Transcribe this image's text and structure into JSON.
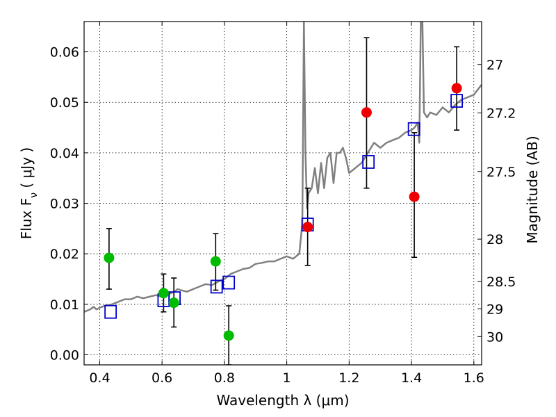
{
  "chart_data": {
    "type": "scatter",
    "xlabel": "Wavelength  λ (μm)",
    "ylabel_left": "Flux  F",
    "ylabel_left_sub": "ν",
    "ylabel_left_unit": "  ( μJy )",
    "ylabel_right": "Magnitude (AB)",
    "xlim": [
      0.35,
      1.625
    ],
    "ylim": [
      -0.002,
      0.066
    ],
    "grid": true,
    "x_ticks": [
      0.4,
      0.6,
      0.8,
      1.0,
      1.2,
      1.4,
      1.6
    ],
    "x_tick_labels": [
      "0.4",
      "0.6",
      "0.8",
      "1",
      "1.2",
      "1.4",
      "1.6"
    ],
    "y_ticks": [
      0.0,
      0.01,
      0.02,
      0.03,
      0.04,
      0.05,
      0.06
    ],
    "y_tick_labels": [
      "0.00",
      "0.01",
      "0.02",
      "0.03",
      "0.04",
      "0.05",
      "0.06"
    ],
    "right_ticks": [
      {
        "label": "27",
        "flux": 0.0575
      },
      {
        "label": "27.2",
        "flux": 0.0479
      },
      {
        "label": "27.5",
        "flux": 0.0363
      },
      {
        "label": "28",
        "flux": 0.0229
      },
      {
        "label": "28.5",
        "flux": 0.0145
      },
      {
        "label": "29",
        "flux": 0.0091
      },
      {
        "label": "30",
        "flux": 0.0036
      }
    ],
    "colors": {
      "model": "#808080",
      "green": "#00bb00",
      "red": "#ee0000",
      "square": "#0000cc",
      "errorbar": "#000000"
    },
    "model_spectrum": {
      "x": [
        0.35,
        0.37,
        0.38,
        0.39,
        0.4,
        0.42,
        0.44,
        0.46,
        0.48,
        0.5,
        0.52,
        0.54,
        0.56,
        0.58,
        0.6,
        0.62,
        0.64,
        0.65,
        0.66,
        0.68,
        0.7,
        0.72,
        0.74,
        0.76,
        0.78,
        0.8,
        0.82,
        0.84,
        0.86,
        0.88,
        0.9,
        0.92,
        0.94,
        0.96,
        0.98,
        1.0,
        1.02,
        1.04,
        1.05,
        1.055,
        1.06,
        1.065,
        1.07,
        1.08,
        1.09,
        1.1,
        1.11,
        1.12,
        1.13,
        1.14,
        1.15,
        1.16,
        1.17,
        1.18,
        1.19,
        1.2,
        1.22,
        1.24,
        1.26,
        1.28,
        1.3,
        1.32,
        1.34,
        1.36,
        1.38,
        1.4,
        1.41,
        1.42,
        1.425,
        1.43,
        1.435,
        1.44,
        1.45,
        1.46,
        1.48,
        1.5,
        1.52,
        1.54,
        1.56,
        1.58,
        1.6,
        1.625
      ],
      "y": [
        0.0085,
        0.009,
        0.0095,
        0.009,
        0.0093,
        0.0098,
        0.01,
        0.0105,
        0.011,
        0.011,
        0.0115,
        0.0112,
        0.0115,
        0.0118,
        0.0115,
        0.012,
        0.0125,
        0.013,
        0.0128,
        0.0125,
        0.013,
        0.0135,
        0.014,
        0.0138,
        0.0145,
        0.015,
        0.016,
        0.0165,
        0.017,
        0.0172,
        0.018,
        0.0182,
        0.0185,
        0.0185,
        0.019,
        0.0195,
        0.019,
        0.02,
        0.026,
        0.066,
        0.04,
        0.029,
        0.032,
        0.033,
        0.037,
        0.032,
        0.038,
        0.033,
        0.039,
        0.04,
        0.034,
        0.04,
        0.04,
        0.041,
        0.039,
        0.036,
        0.037,
        0.038,
        0.04,
        0.042,
        0.041,
        0.042,
        0.0425,
        0.043,
        0.044,
        0.0445,
        0.045,
        0.046,
        0.042,
        0.066,
        0.066,
        0.048,
        0.047,
        0.048,
        0.0475,
        0.049,
        0.048,
        0.0495,
        0.0505,
        0.051,
        0.0515,
        0.0535
      ]
    },
    "green_points": [
      {
        "x": 0.43,
        "y": 0.0192,
        "yerr_low": 0.013,
        "yerr_high": 0.025
      },
      {
        "x": 0.605,
        "y": 0.0122,
        "yerr_low": 0.0085,
        "yerr_high": 0.016
      },
      {
        "x": 0.638,
        "y": 0.0103,
        "yerr_low": 0.0055,
        "yerr_high": 0.0152
      },
      {
        "x": 0.772,
        "y": 0.0185,
        "yerr_low": 0.0128,
        "yerr_high": 0.024
      },
      {
        "x": 0.814,
        "y": 0.0038,
        "yerr_low": -0.002,
        "yerr_high": 0.0097
      }
    ],
    "red_points": [
      {
        "x": 1.067,
        "y": 0.0253,
        "yerr_low": 0.0177,
        "yerr_high": 0.033
      },
      {
        "x": 1.256,
        "y": 0.048,
        "yerr_low": 0.033,
        "yerr_high": 0.0628
      },
      {
        "x": 1.409,
        "y": 0.0313,
        "yerr_low": 0.0193,
        "yerr_high": 0.044
      },
      {
        "x": 1.545,
        "y": 0.0528,
        "yerr_low": 0.0445,
        "yerr_high": 0.061
      }
    ],
    "model_squares": [
      {
        "x": 0.435,
        "y": 0.0085
      },
      {
        "x": 0.605,
        "y": 0.0108
      },
      {
        "x": 0.64,
        "y": 0.0112
      },
      {
        "x": 0.775,
        "y": 0.0135
      },
      {
        "x": 0.814,
        "y": 0.0143
      },
      {
        "x": 1.067,
        "y": 0.0258
      },
      {
        "x": 1.262,
        "y": 0.0382
      },
      {
        "x": 1.408,
        "y": 0.0447
      },
      {
        "x": 1.545,
        "y": 0.0503
      }
    ]
  }
}
